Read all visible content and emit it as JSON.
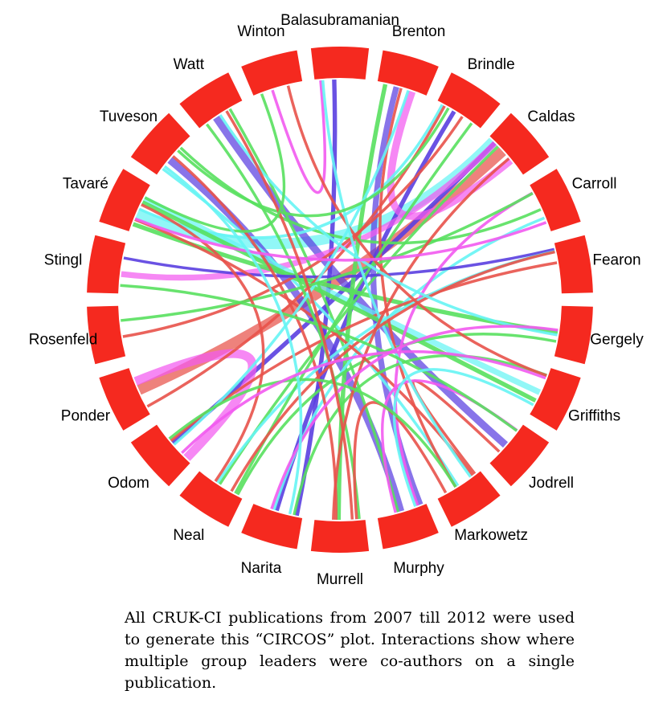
{
  "diagram": {
    "type": "circos",
    "segment_color": "#f5291f",
    "groups": [
      "Balasubramanian",
      "Brenton",
      "Brindle",
      "Caldas",
      "Carroll",
      "Fearon",
      "Gergely",
      "Griffiths",
      "Jodrell",
      "Markowetz",
      "Murphy",
      "Murrell",
      "Narita",
      "Neal",
      "Odom",
      "Ponder",
      "Rosenfeld",
      "Stingl",
      "Tavaré",
      "Tuveson",
      "Watt",
      "Winton"
    ],
    "palette": {
      "blue": "#5a3fe0",
      "red": "#e8524a",
      "green": "#58e05e",
      "cyan": "#66f4f4",
      "magenta": "#f25af0"
    },
    "links": [
      {
        "from": "Caldas",
        "to": "Ponder",
        "color": "red",
        "weight": 6
      },
      {
        "from": "Tavaré",
        "to": "Caldas",
        "color": "cyan",
        "weight": 6
      },
      {
        "from": "Watt",
        "to": "Jodrell",
        "color": "blue",
        "weight": 4
      },
      {
        "from": "Tuveson",
        "to": "Murphy",
        "color": "blue",
        "weight": 4
      },
      {
        "from": "Brenton",
        "to": "Murphy",
        "color": "blue",
        "weight": 3
      },
      {
        "from": "Brindle",
        "to": "Narita",
        "color": "blue",
        "weight": 2
      },
      {
        "from": "Balasubramanian",
        "to": "Narita",
        "color": "blue",
        "weight": 2
      },
      {
        "from": "Caldas",
        "to": "Odom",
        "color": "blue",
        "weight": 2
      },
      {
        "from": "Stingl",
        "to": "Caldas",
        "color": "magenta",
        "weight": 3
      },
      {
        "from": "Ponder",
        "to": "Odom",
        "color": "magenta",
        "weight": 5
      },
      {
        "from": "Brenton",
        "to": "Caldas",
        "color": "magenta",
        "weight": 4
      },
      {
        "from": "Tavaré",
        "to": "Griffiths",
        "color": "cyan",
        "weight": 3
      },
      {
        "from": "Tavaré",
        "to": "Gergely",
        "color": "green",
        "weight": 2
      },
      {
        "from": "Tuveson",
        "to": "Carroll",
        "color": "green",
        "weight": 1
      },
      {
        "from": "Tavaré",
        "to": "Brindle",
        "color": "cyan",
        "weight": 1
      },
      {
        "from": "Watt",
        "to": "Murphy",
        "color": "green",
        "weight": 1
      },
      {
        "from": "Tuveson",
        "to": "Markowetz",
        "color": "cyan",
        "weight": 1
      },
      {
        "from": "Brenton",
        "to": "Murrell",
        "color": "green",
        "weight": 2
      },
      {
        "from": "Caldas",
        "to": "Neal",
        "color": "green",
        "weight": 1
      },
      {
        "from": "Carroll",
        "to": "Narita",
        "color": "cyan",
        "weight": 1
      },
      {
        "from": "Fearon",
        "to": "Odom",
        "color": "red",
        "weight": 1
      },
      {
        "from": "Gergely",
        "to": "Neal",
        "color": "green",
        "weight": 1
      },
      {
        "from": "Griffiths",
        "to": "Tavaré",
        "color": "green",
        "weight": 2
      },
      {
        "from": "Jodrell",
        "to": "Markowetz",
        "color": "red",
        "weight": 1
      },
      {
        "from": "Rosenfeld",
        "to": "Brindle",
        "color": "red",
        "weight": 1
      },
      {
        "from": "Stingl",
        "to": "Fearon",
        "color": "blue",
        "weight": 1
      },
      {
        "from": "Winton",
        "to": "Balasubramanian",
        "color": "magenta",
        "weight": 1
      },
      {
        "from": "Brenton",
        "to": "Markowetz",
        "color": "red",
        "weight": 1
      },
      {
        "from": "Tavaré",
        "to": "Markowetz",
        "color": "red",
        "weight": 1
      },
      {
        "from": "Ponder",
        "to": "Brindle",
        "color": "red",
        "weight": 1
      },
      {
        "from": "Watt",
        "to": "Murrell",
        "color": "green",
        "weight": 1
      },
      {
        "from": "Tuveson",
        "to": "Murrell",
        "color": "red",
        "weight": 1
      },
      {
        "from": "Carroll",
        "to": "Murphy",
        "color": "magenta",
        "weight": 1
      },
      {
        "from": "Fearon",
        "to": "Neal",
        "color": "cyan",
        "weight": 1
      },
      {
        "from": "Brindle",
        "to": "Neal",
        "color": "green",
        "weight": 1
      },
      {
        "from": "Griffiths",
        "to": "Narita",
        "color": "green",
        "weight": 1
      },
      {
        "from": "Jodrell",
        "to": "Murphy",
        "color": "magenta",
        "weight": 1
      },
      {
        "from": "Markowetz",
        "to": "Murrell",
        "color": "red",
        "weight": 1
      },
      {
        "from": "Odom",
        "to": "Brenton",
        "color": "cyan",
        "weight": 1
      },
      {
        "from": "Rosenfeld",
        "to": "Carroll",
        "color": "green",
        "weight": 1
      },
      {
        "from": "Winton",
        "to": "Griffiths",
        "color": "red",
        "weight": 1
      },
      {
        "from": "Balasubramanian",
        "to": "Markowetz",
        "color": "cyan",
        "weight": 1
      },
      {
        "from": "Caldas",
        "to": "Murrell",
        "color": "red",
        "weight": 1
      },
      {
        "from": "Tavaré",
        "to": "Neal",
        "color": "red",
        "weight": 1
      },
      {
        "from": "Neal",
        "to": "Fearon",
        "color": "red",
        "weight": 1
      },
      {
        "from": "Stingl",
        "to": "Jodrell",
        "color": "green",
        "weight": 1
      },
      {
        "from": "Watt",
        "to": "Gergely",
        "color": "cyan",
        "weight": 1
      },
      {
        "from": "Brindle",
        "to": "Tuveson",
        "color": "green",
        "weight": 1
      },
      {
        "from": "Carroll",
        "to": "Tavaré",
        "color": "magenta",
        "weight": 1
      },
      {
        "from": "Gergely",
        "to": "Narita",
        "color": "magenta",
        "weight": 1
      },
      {
        "from": "Griffiths",
        "to": "Murphy",
        "color": "cyan",
        "weight": 1
      },
      {
        "from": "Markowetz",
        "to": "Odom",
        "color": "green",
        "weight": 1
      },
      {
        "from": "Murrell",
        "to": "Watt",
        "color": "red",
        "weight": 1
      },
      {
        "from": "Winton",
        "to": "Tavaré",
        "color": "green",
        "weight": 1
      },
      {
        "from": "Narita",
        "to": "Tuveson",
        "color": "cyan",
        "weight": 1
      },
      {
        "from": "Odom",
        "to": "Griffiths",
        "color": "magenta",
        "weight": 1
      }
    ]
  },
  "caption": "All CRUK-CI publications from 2007 till 2012 were used to generate this “CIRCOS” plot. Interactions show where multiple group leaders were co-authors on a single publication."
}
